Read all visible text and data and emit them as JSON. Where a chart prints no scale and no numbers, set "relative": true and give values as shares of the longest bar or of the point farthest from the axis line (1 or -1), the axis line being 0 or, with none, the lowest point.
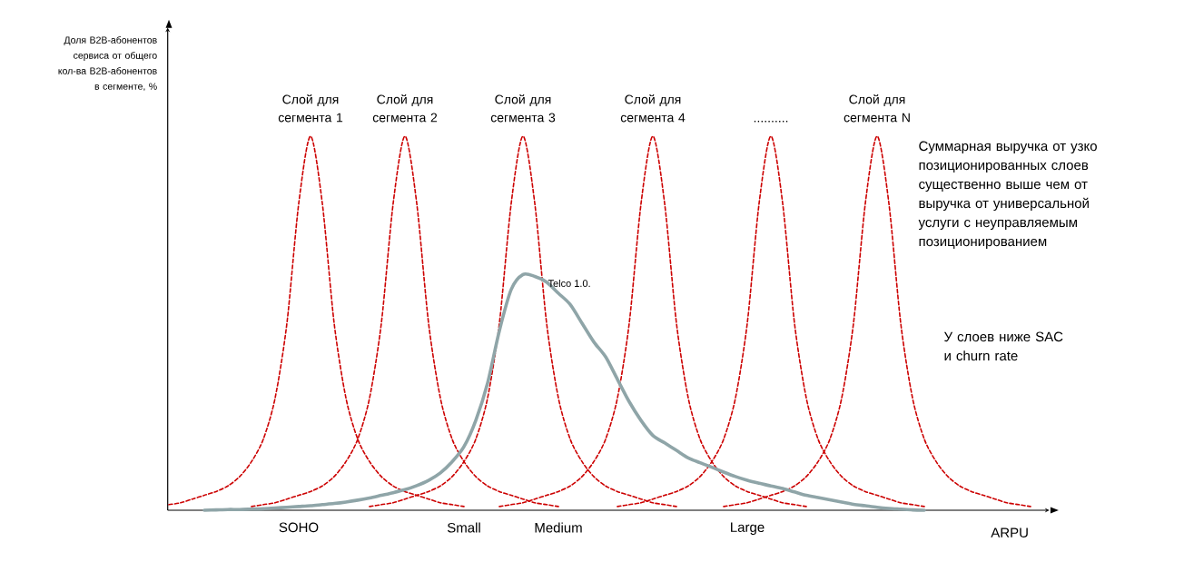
{
  "chart_data": {
    "type": "line",
    "relative": true,
    "ylabel": "Доля B2B-абонентов сервиса от общего кол-ва B2B-абонентов в сегменте, %",
    "xlabel": "ARPU",
    "annotations": [
      "Суммарная выручка от узко позиционированных слоев существенно выше чем от выручка от универсальной услуги с неуправляемым позиционированием",
      "У слоев ниже SAC и churn rate"
    ],
    "categories": [
      null,
      null,
      null,
      null,
      null,
      null,
      null,
      null,
      null,
      null,
      null,
      "SOHO",
      null,
      null,
      null,
      null,
      null,
      null,
      null,
      null,
      null,
      null,
      null,
      null,
      null,
      "Small",
      null,
      null,
      null,
      null,
      null,
      null,
      null,
      "Medium",
      null,
      null,
      null,
      null,
      null,
      null,
      null,
      null,
      null,
      null,
      null,
      null,
      null,
      null,
      null,
      "Large",
      null,
      null,
      null,
      null,
      null,
      null,
      null,
      null,
      null,
      null,
      null,
      null,
      null,
      null,
      null,
      null,
      null,
      null,
      null,
      null,
      null,
      null,
      null,
      null,
      null
    ],
    "series": [
      {
        "name": "Слой для сегмента 1",
        "color": "#cc0000",
        "line_style": "dashed",
        "values": [
          0.015,
          0.02,
          0.03,
          0.04,
          0.05,
          0.065,
          0.09,
          0.13,
          0.19,
          0.3,
          0.5,
          0.82,
          1,
          0.82,
          0.5,
          0.3,
          0.19,
          0.13,
          0.09,
          0.065,
          0.05,
          0.04,
          0.03,
          0.02,
          0.015,
          0.01,
          null,
          null,
          null,
          null,
          null,
          null,
          null,
          null,
          null,
          null,
          null,
          null,
          null,
          null,
          null,
          null,
          null,
          null,
          null,
          null,
          null,
          null,
          null,
          null,
          null,
          null,
          null,
          null,
          null,
          null,
          null,
          null,
          null,
          null,
          null,
          null,
          null,
          null,
          null,
          null,
          null,
          null,
          null,
          null,
          null,
          null,
          null,
          null,
          null
        ]
      },
      {
        "name": "Слой для сегмента 2",
        "color": "#cc0000",
        "line_style": "dashed",
        "values": [
          null,
          null,
          null,
          null,
          null,
          null,
          null,
          0.01,
          0.015,
          0.02,
          0.03,
          0.04,
          0.05,
          0.065,
          0.09,
          0.13,
          0.19,
          0.3,
          0.5,
          0.82,
          1,
          0.82,
          0.5,
          0.3,
          0.19,
          0.13,
          0.09,
          0.065,
          0.05,
          0.04,
          0.03,
          0.02,
          0.015,
          0.01,
          null,
          null,
          null,
          null,
          null,
          null,
          null,
          null,
          null,
          null,
          null,
          null,
          null,
          null,
          null,
          null,
          null,
          null,
          null,
          null,
          null,
          null,
          null,
          null,
          null,
          null,
          null,
          null,
          null,
          null,
          null,
          null,
          null,
          null,
          null,
          null,
          null,
          null,
          null,
          null,
          null
        ]
      },
      {
        "name": "Слой для сегмента 3",
        "color": "#cc0000",
        "line_style": "dashed",
        "values": [
          null,
          null,
          null,
          null,
          null,
          null,
          null,
          null,
          null,
          null,
          null,
          null,
          null,
          null,
          null,
          null,
          null,
          0.01,
          0.015,
          0.02,
          0.03,
          0.04,
          0.05,
          0.065,
          0.09,
          0.13,
          0.19,
          0.3,
          0.5,
          0.82,
          1,
          0.82,
          0.5,
          0.3,
          0.19,
          0.13,
          0.09,
          0.065,
          0.05,
          0.04,
          0.03,
          0.02,
          0.015,
          0.01,
          null,
          null,
          null,
          null,
          null,
          null,
          null,
          null,
          null,
          null,
          null,
          null,
          null,
          null,
          null,
          null,
          null,
          null,
          null,
          null,
          null,
          null,
          null,
          null,
          null,
          null,
          null,
          null,
          null,
          null,
          null
        ]
      },
      {
        "name": "Слой для сегмента 4",
        "color": "#cc0000",
        "line_style": "dashed",
        "values": [
          null,
          null,
          null,
          null,
          null,
          null,
          null,
          null,
          null,
          null,
          null,
          null,
          null,
          null,
          null,
          null,
          null,
          null,
          null,
          null,
          null,
          null,
          null,
          null,
          null,
          null,
          null,
          null,
          0.01,
          0.015,
          0.02,
          0.03,
          0.04,
          0.05,
          0.065,
          0.09,
          0.13,
          0.19,
          0.3,
          0.5,
          0.82,
          1,
          0.82,
          0.5,
          0.3,
          0.19,
          0.13,
          0.09,
          0.065,
          0.05,
          0.04,
          0.03,
          0.02,
          0.015,
          0.01,
          null,
          null,
          null,
          null,
          null,
          null,
          null,
          null,
          null,
          null,
          null,
          null,
          null,
          null,
          null,
          null,
          null,
          null,
          null,
          null
        ]
      },
      {
        "name": "..........",
        "color": "#cc0000",
        "line_style": "dashed",
        "values": [
          null,
          null,
          null,
          null,
          null,
          null,
          null,
          null,
          null,
          null,
          null,
          null,
          null,
          null,
          null,
          null,
          null,
          null,
          null,
          null,
          null,
          null,
          null,
          null,
          null,
          null,
          null,
          null,
          null,
          null,
          null,
          null,
          null,
          null,
          null,
          null,
          null,
          null,
          0.01,
          0.015,
          0.02,
          0.03,
          0.04,
          0.05,
          0.065,
          0.09,
          0.13,
          0.19,
          0.3,
          0.5,
          0.82,
          1,
          0.82,
          0.5,
          0.3,
          0.19,
          0.13,
          0.09,
          0.065,
          0.05,
          0.04,
          0.03,
          0.02,
          0.015,
          0.01,
          null,
          null,
          null,
          null,
          null,
          null,
          null,
          null,
          null,
          null
        ]
      },
      {
        "name": "Слой для сегмента N",
        "color": "#cc0000",
        "line_style": "dashed",
        "values": [
          null,
          null,
          null,
          null,
          null,
          null,
          null,
          null,
          null,
          null,
          null,
          null,
          null,
          null,
          null,
          null,
          null,
          null,
          null,
          null,
          null,
          null,
          null,
          null,
          null,
          null,
          null,
          null,
          null,
          null,
          null,
          null,
          null,
          null,
          null,
          null,
          null,
          null,
          null,
          null,
          null,
          null,
          null,
          null,
          null,
          null,
          null,
          0.01,
          0.015,
          0.02,
          0.03,
          0.04,
          0.05,
          0.065,
          0.09,
          0.13,
          0.19,
          0.3,
          0.5,
          0.82,
          1,
          0.82,
          0.5,
          0.3,
          0.19,
          0.13,
          0.09,
          0.065,
          0.05,
          0.04,
          0.03,
          0.02,
          0.015,
          0.01,
          null
        ]
      },
      {
        "name": "Telco 1.0.",
        "color": "#8fa5a8",
        "line_style": "solid",
        "values": [
          null,
          null,
          null,
          0,
          0.001,
          0.002,
          0.002,
          0.003,
          0.004,
          0.006,
          0.008,
          0.01,
          0.012,
          0.015,
          0.018,
          0.022,
          0.027,
          0.033,
          0.04,
          0.047,
          0.055,
          0.066,
          0.08,
          0.1,
          0.13,
          0.17,
          0.24,
          0.34,
          0.48,
          0.59,
          0.63,
          0.625,
          0.61,
          0.58,
          0.55,
          0.5,
          0.45,
          0.41,
          0.35,
          0.29,
          0.24,
          0.2,
          0.18,
          0.16,
          0.14,
          0.127,
          0.115,
          0.102,
          0.09,
          0.08,
          0.072,
          0.065,
          0.058,
          0.049,
          0.04,
          0.034,
          0.028,
          0.022,
          0.016,
          0.012,
          0.008,
          0.005,
          0.003,
          0.001,
          0,
          null,
          null,
          null,
          null,
          null,
          null,
          null,
          null,
          null,
          null
        ]
      }
    ]
  }
}
